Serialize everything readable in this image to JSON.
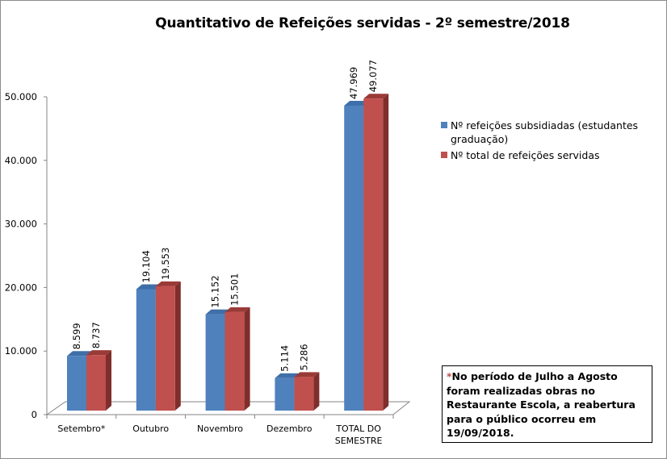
{
  "chart_data": {
    "type": "bar",
    "style": "3d-clustered-column",
    "title": "Quantitativo  de Refeições servidas  - 2º semestre/2018",
    "categories": [
      "Setembro*",
      "Outubro",
      "Novembro",
      "Dezembro",
      "TOTAL DO SEMESTRE"
    ],
    "series": [
      {
        "name": "Nº refeições subsidiadas (estudantes graduação)",
        "color": "#4f81bd",
        "values": [
          8599,
          19104,
          15152,
          5114,
          47969
        ],
        "labels": [
          "8.599",
          "19.104",
          "15.152",
          "5.114",
          "47.969"
        ]
      },
      {
        "name": "Nº total de refeições servidas",
        "color": "#c0504d",
        "values": [
          8737,
          19553,
          15501,
          5286,
          49077
        ],
        "labels": [
          "8.737",
          "19.553",
          "15.501",
          "5.286",
          "49.077"
        ]
      }
    ],
    "ylim": [
      0,
      50000
    ],
    "yticks": [
      0,
      10000,
      20000,
      30000,
      40000,
      50000
    ],
    "ytick_labels": [
      "0",
      "10.000",
      "20.000",
      "30.000",
      "40.000",
      "50.000"
    ],
    "grid": false,
    "legend": "right",
    "note_marker": "*",
    "note": "No período de Julho a Agosto foram realizadas obras no Restaurante Escola, a reabertura para o público ocorreu em 19/09/2018."
  }
}
